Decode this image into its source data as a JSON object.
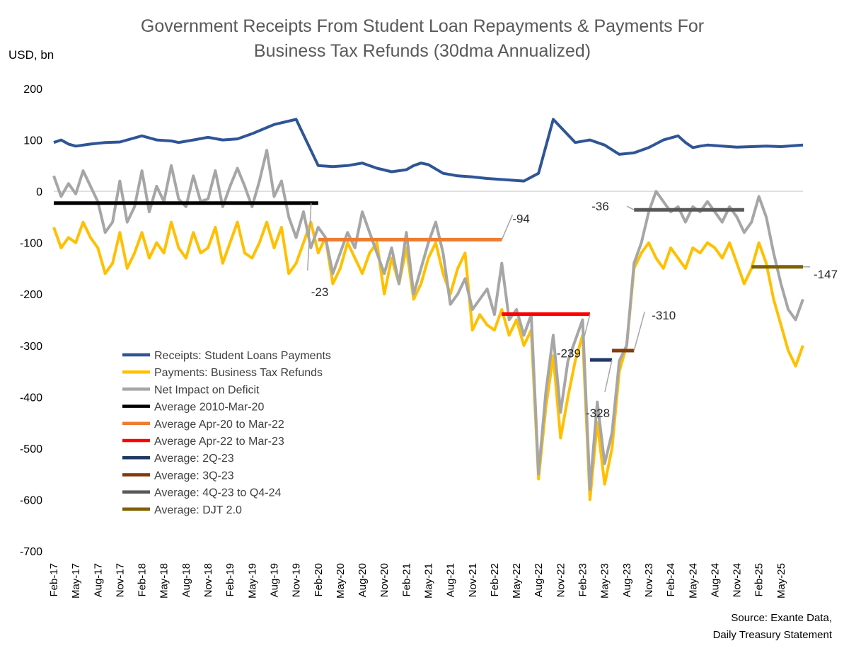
{
  "chart_data": {
    "type": "line",
    "title": "Government Receipts From Student Loan Repayments & Payments  For",
    "title_line2": "Business Tax Refunds (30dma Annualized)",
    "ylabel": "USD, bn",
    "ylim": [
      -700,
      200
    ],
    "y_ticks": [
      "200",
      "100",
      "0",
      "-100",
      "-200",
      "-300",
      "-400",
      "-500",
      "-600",
      "-700"
    ],
    "x_ticks": [
      "Feb-17",
      "May-17",
      "Aug-17",
      "Nov-17",
      "Feb-18",
      "May-18",
      "Aug-18",
      "Nov-18",
      "Feb-19",
      "May-19",
      "Aug-19",
      "Nov-19",
      "Feb-20",
      "May-20",
      "Aug-20",
      "Nov-20",
      "Feb-21",
      "May-21",
      "Aug-21",
      "Nov-21",
      "Feb-22",
      "May-22",
      "Aug-22",
      "Nov-22",
      "Feb-23",
      "May-23",
      "Aug-23",
      "Nov-23",
      "Feb-24",
      "May-24",
      "Aug-24",
      "Nov-24",
      "Feb-25",
      "May-25"
    ],
    "x_range_months": [
      0,
      102
    ],
    "source": [
      "Source: Exante Data,",
      "Daily Treasury Statement"
    ],
    "series": [
      {
        "name": "Receipts: Student Loans Payments",
        "color": "#2F5597",
        "x": [
          0,
          1,
          2,
          3,
          5,
          7,
          9,
          12,
          14,
          16,
          17,
          19,
          21,
          23,
          25,
          27,
          30,
          33,
          36,
          38,
          40,
          42,
          44,
          46,
          48,
          49,
          50,
          51,
          53,
          55,
          57,
          59,
          62,
          64,
          66,
          68,
          71,
          73,
          75,
          77,
          79,
          81,
          83,
          85,
          86,
          87,
          88,
          89,
          91,
          93,
          95,
          97,
          99,
          100,
          101,
          102
        ],
        "y": [
          95,
          100,
          92,
          88,
          92,
          95,
          96,
          108,
          100,
          98,
          95,
          100,
          105,
          100,
          102,
          112,
          130,
          140,
          50,
          48,
          50,
          55,
          45,
          38,
          42,
          50,
          55,
          52,
          35,
          30,
          28,
          25,
          22,
          20,
          35,
          140,
          95,
          100,
          90,
          72,
          75,
          85,
          100,
          108,
          95,
          85,
          88,
          90,
          88,
          86,
          87,
          88,
          87,
          88,
          89,
          90
        ]
      },
      {
        "name": "Payments: Business Tax Refunds",
        "color": "#FFC000",
        "x": [
          0,
          1,
          2,
          3,
          4,
          5,
          6,
          7,
          8,
          9,
          10,
          11,
          12,
          13,
          14,
          15,
          16,
          17,
          18,
          19,
          20,
          21,
          22,
          23,
          24,
          25,
          26,
          27,
          28,
          29,
          30,
          31,
          32,
          33,
          34,
          35,
          36,
          37,
          38,
          39,
          40,
          41,
          42,
          43,
          44,
          45,
          46,
          47,
          48,
          49,
          50,
          51,
          52,
          53,
          54,
          55,
          56,
          57,
          58,
          59,
          60,
          61,
          62,
          63,
          64,
          65,
          66,
          67,
          68,
          69,
          70,
          71,
          72,
          73,
          74,
          75,
          76,
          77,
          78,
          79,
          80,
          81,
          82,
          83,
          84,
          85,
          86,
          87,
          88,
          89,
          90,
          91,
          92,
          93,
          94,
          95,
          96,
          97,
          98,
          99,
          100,
          101,
          102
        ],
        "y": [
          -70,
          -110,
          -90,
          -100,
          -60,
          -90,
          -110,
          -160,
          -140,
          -80,
          -150,
          -120,
          -80,
          -130,
          -100,
          -120,
          -60,
          -110,
          -130,
          -80,
          -120,
          -110,
          -70,
          -140,
          -100,
          -60,
          -120,
          -130,
          -100,
          -60,
          -110,
          -70,
          -160,
          -140,
          -100,
          -60,
          -120,
          -90,
          -180,
          -150,
          -100,
          -130,
          -160,
          -120,
          -100,
          -200,
          -130,
          -180,
          -110,
          -210,
          -180,
          -130,
          -100,
          -160,
          -200,
          -150,
          -120,
          -270,
          -240,
          -260,
          -270,
          -230,
          -280,
          -250,
          -300,
          -270,
          -560,
          -420,
          -320,
          -480,
          -400,
          -330,
          -280,
          -600,
          -450,
          -570,
          -500,
          -350,
          -300,
          -150,
          -120,
          -100,
          -130,
          -150,
          -110,
          -130,
          -150,
          -110,
          -120,
          -100,
          -110,
          -130,
          -100,
          -140,
          -180,
          -150,
          -100,
          -140,
          -210,
          -260,
          -310,
          -340,
          -300
        ]
      },
      {
        "name": "Net Impact on Deficit",
        "color": "#A6A6A6",
        "x": [
          0,
          1,
          2,
          3,
          4,
          5,
          6,
          7,
          8,
          9,
          10,
          11,
          12,
          13,
          14,
          15,
          16,
          17,
          18,
          19,
          20,
          21,
          22,
          23,
          24,
          25,
          26,
          27,
          28,
          29,
          30,
          31,
          32,
          33,
          34,
          35,
          36,
          37,
          38,
          39,
          40,
          41,
          42,
          43,
          44,
          45,
          46,
          47,
          48,
          49,
          50,
          51,
          52,
          53,
          54,
          55,
          56,
          57,
          58,
          59,
          60,
          61,
          62,
          63,
          64,
          65,
          66,
          67,
          68,
          69,
          70,
          71,
          72,
          73,
          74,
          75,
          76,
          77,
          78,
          79,
          80,
          81,
          82,
          83,
          84,
          85,
          86,
          87,
          88,
          89,
          90,
          91,
          92,
          93,
          94,
          95,
          96,
          97,
          98,
          99,
          100,
          101,
          102
        ],
        "y": [
          30,
          -10,
          15,
          -5,
          40,
          10,
          -20,
          -80,
          -60,
          20,
          -60,
          -30,
          40,
          -40,
          10,
          -20,
          50,
          -15,
          -30,
          30,
          -20,
          -15,
          40,
          -30,
          10,
          45,
          10,
          -30,
          20,
          80,
          -10,
          20,
          -50,
          -90,
          -40,
          -110,
          -70,
          -90,
          -160,
          -120,
          -80,
          -110,
          -40,
          -80,
          -120,
          -160,
          -110,
          -180,
          -80,
          -200,
          -150,
          -100,
          -60,
          -120,
          -220,
          -200,
          -170,
          -230,
          -210,
          -190,
          -240,
          -140,
          -250,
          -230,
          -280,
          -240,
          -550,
          -390,
          -280,
          -430,
          -330,
          -290,
          -250,
          -580,
          -410,
          -530,
          -470,
          -330,
          -300,
          -140,
          -100,
          -40,
          0,
          -20,
          -40,
          -30,
          -60,
          -30,
          -40,
          -20,
          -40,
          -60,
          -30,
          -50,
          -80,
          -60,
          -10,
          -50,
          -120,
          -180,
          -230,
          -250,
          -210
        ]
      }
    ],
    "averages": [
      {
        "name": "Average 2010-Mar-20",
        "color": "#000000",
        "value": -23,
        "x_start": 0,
        "x_end": 36,
        "label": "-23"
      },
      {
        "name": "Average Apr-20 to Mar-22",
        "color": "#ED7D31",
        "value": -94,
        "x_start": 36,
        "x_end": 61,
        "label": "-94"
      },
      {
        "name": "Average Apr-22 to Mar-23",
        "color": "#FF0000",
        "value": -239,
        "x_start": 61,
        "x_end": 73,
        "label": "-239"
      },
      {
        "name": "Average: 2Q-23",
        "color": "#203864",
        "value": -328,
        "x_start": 73,
        "x_end": 76,
        "label": "-328"
      },
      {
        "name": "Average: 3Q-23",
        "color": "#843C0C",
        "value": -310,
        "x_start": 76,
        "x_end": 79,
        "label": "-310"
      },
      {
        "name": "Average: 4Q-23 to Q4-24",
        "color": "#595959",
        "value": -36,
        "x_start": 79,
        "x_end": 94,
        "label": "-36"
      },
      {
        "name": "Average: DJT 2.0",
        "color": "#7F6000",
        "value": -147,
        "x_start": 95,
        "x_end": 102,
        "label": "-147"
      }
    ]
  }
}
